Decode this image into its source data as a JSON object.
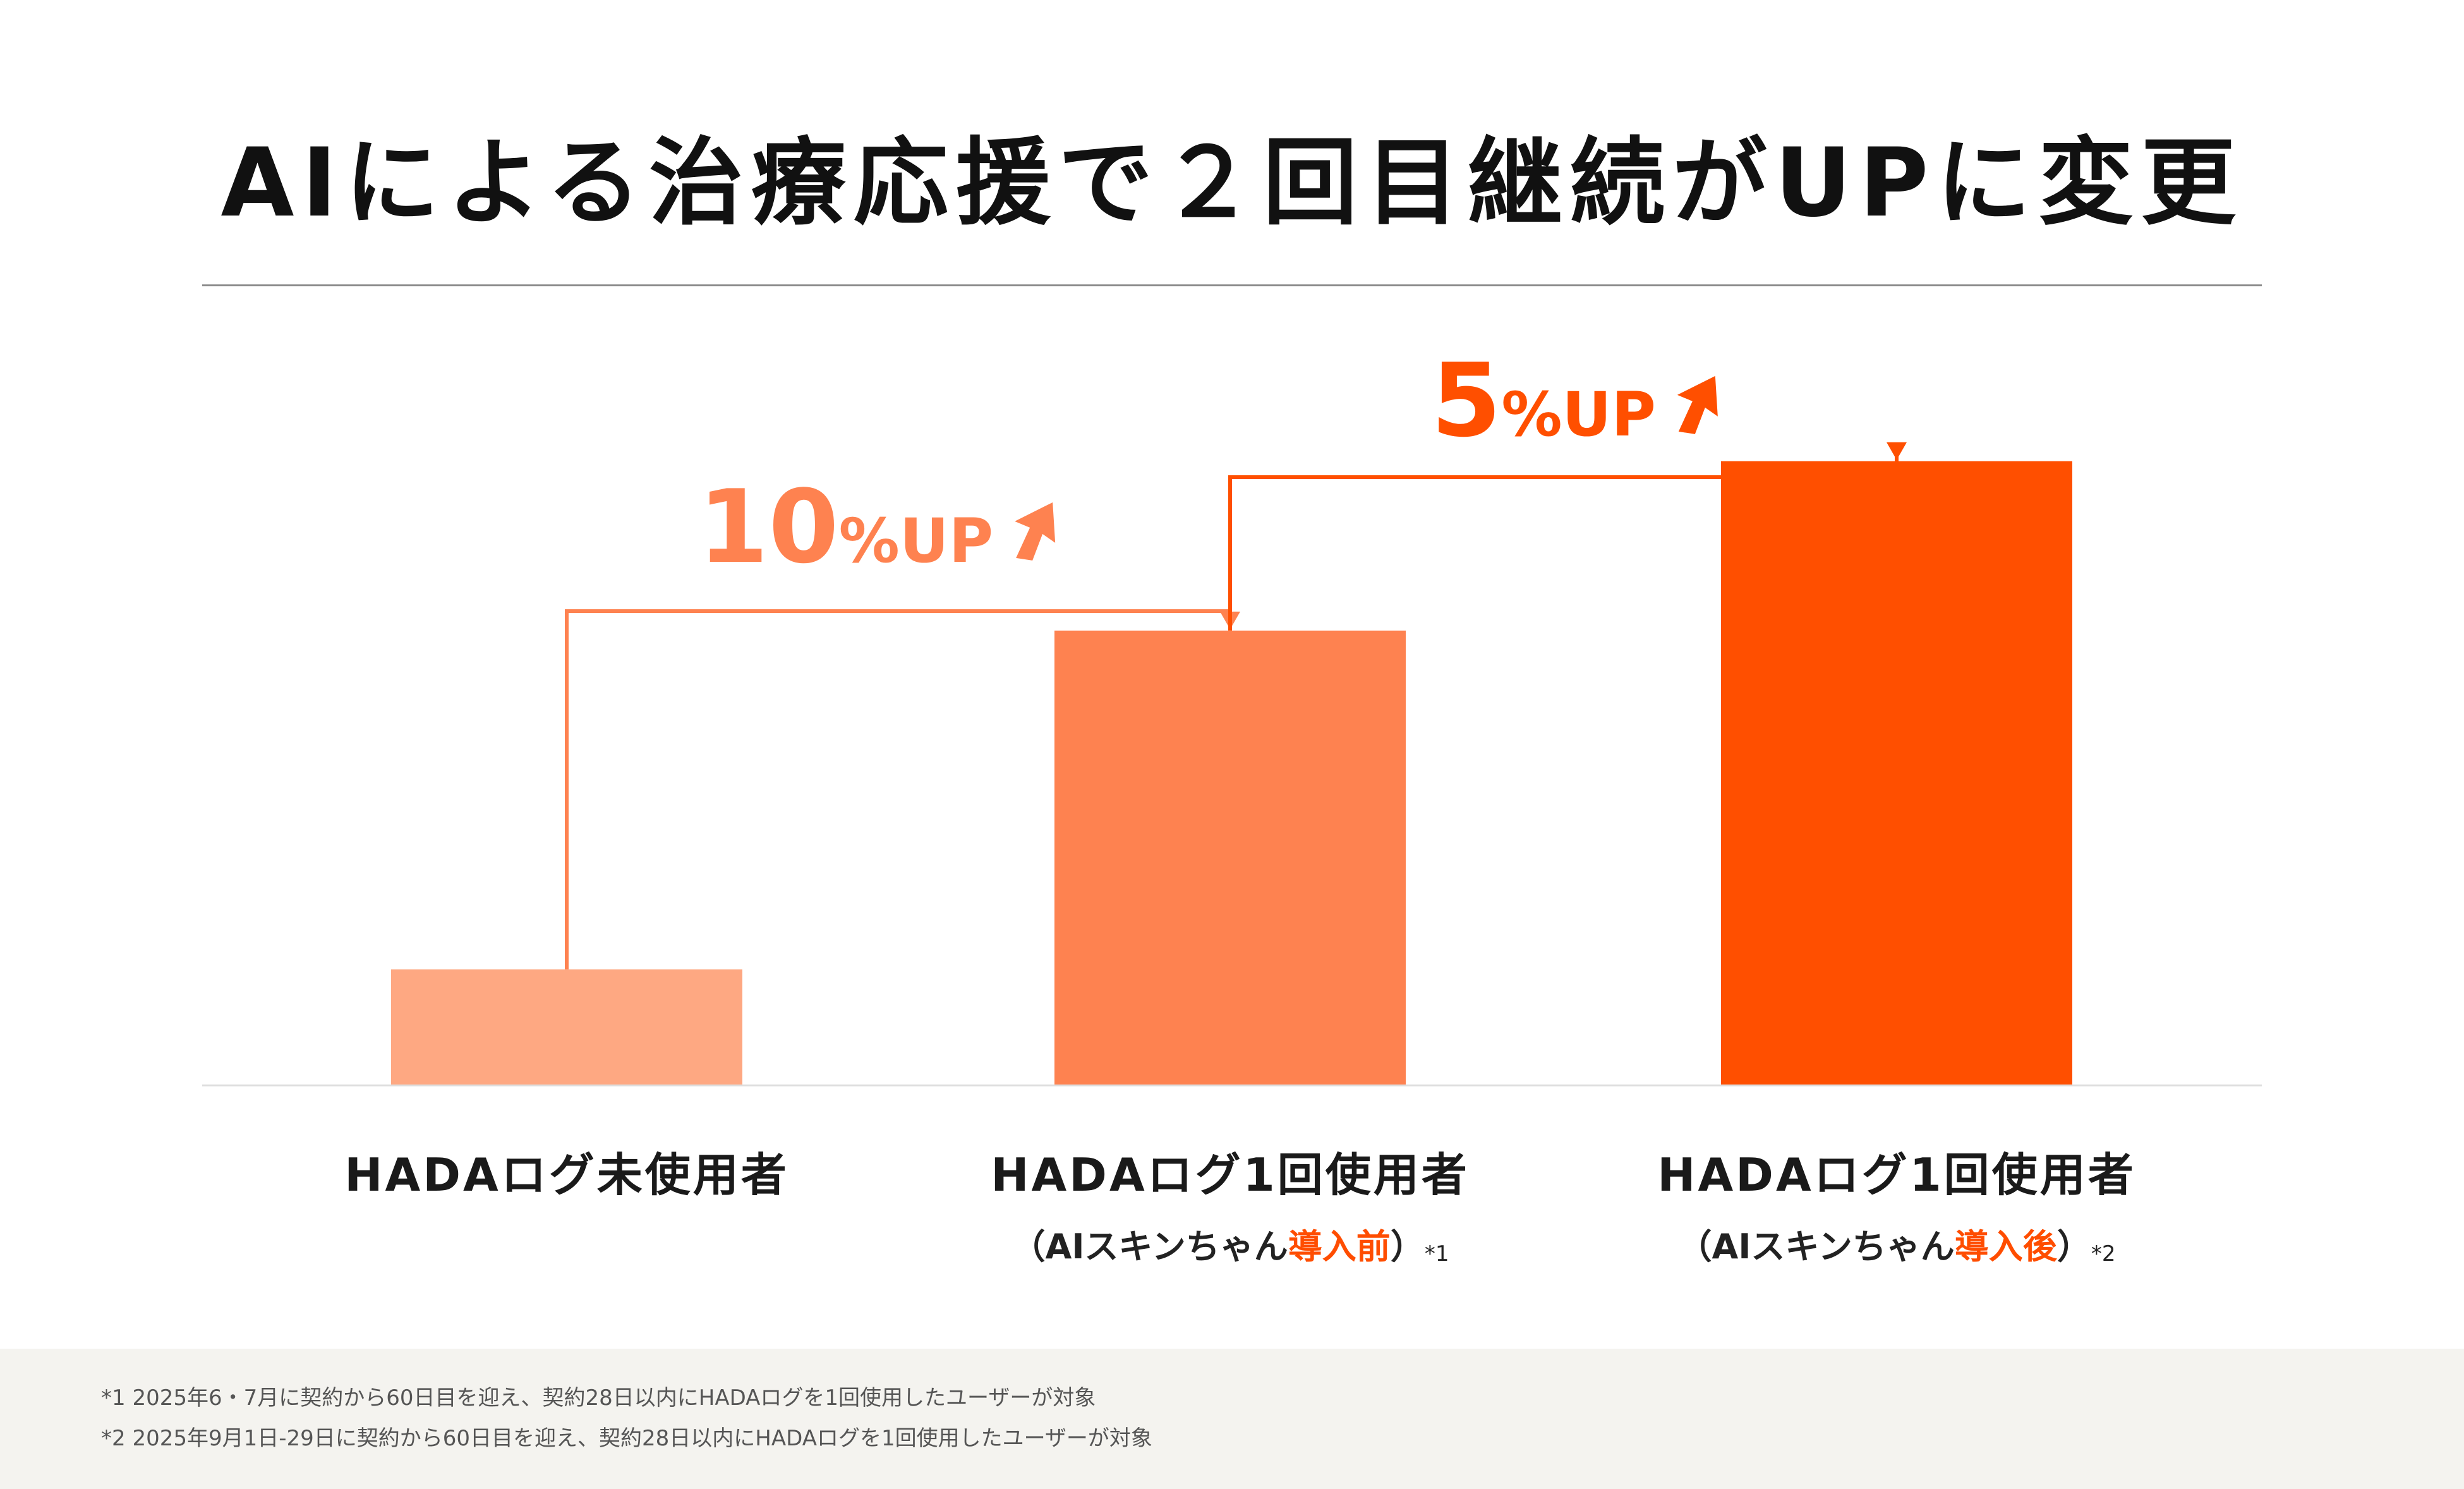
{
  "title": "AIによる治療応援で２回目継続がUPに変更",
  "chart_data": {
    "type": "bar",
    "categories": [
      "HADAログ未使用者",
      "HADAログ1回使用者",
      "HADAログ1回使用者"
    ],
    "category_notes": [
      null,
      {
        "open": "（AIスキンちゃん",
        "highlight": "導入前",
        "close": "）",
        "note": "*1"
      },
      {
        "open": "（AIスキンちゃん",
        "highlight": "導入後",
        "close": "）",
        "note": "*2"
      }
    ],
    "values": [
      3.4,
      13.4,
      18.4
    ],
    "ylim": [
      0,
      25
    ],
    "colors": [
      "#fea882",
      "#fe8250",
      "#ff4f00"
    ],
    "annotations": [
      {
        "from": 0,
        "to": 1,
        "value": "10",
        "unit": "%UP",
        "color": "#fe8250"
      },
      {
        "from": 1,
        "to": 2,
        "value": "5",
        "unit": "%UP",
        "color": "#ff4f00"
      }
    ],
    "grid": false,
    "legend": "none"
  },
  "footnotes": [
    "*1 2025年6・7月に契約から60日目を迎え、契約28日以内にHADAログを1回使用したユーザーが対象",
    "*2 2025年9月1日-29日に契約から60日目を迎え、契約28日以内にHADAログを1回使用したユーザーが対象"
  ]
}
